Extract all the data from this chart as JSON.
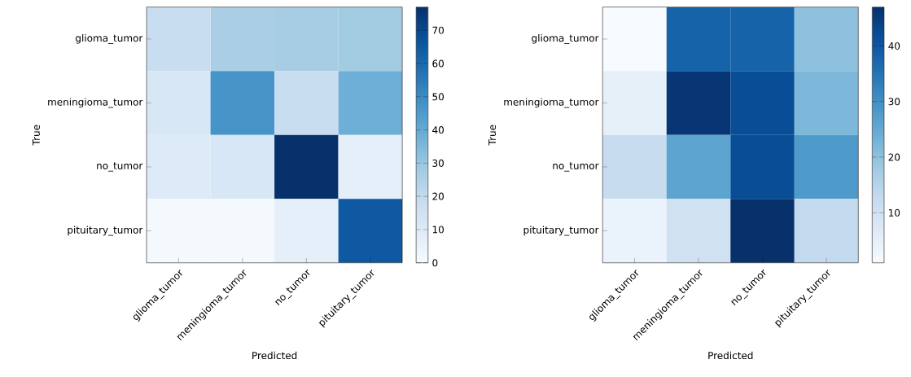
{
  "chart_data": [
    {
      "type": "heatmap",
      "xlabel": "Predicted",
      "ylabel": "True",
      "categories": [
        "glioma_tumor",
        "meningioma_tumor",
        "no_tumor",
        "pituitary_tumor"
      ],
      "y_categories": [
        "glioma_tumor",
        "meningioma_tumor",
        "no_tumor",
        "pituitary_tumor"
      ],
      "cells": [
        [
          18,
          26,
          27,
          28
        ],
        [
          12,
          47,
          18,
          38
        ],
        [
          10,
          12,
          77,
          7
        ],
        [
          1,
          1,
          7,
          65
        ]
      ],
      "clim": [
        0,
        77
      ],
      "cticks": [
        0,
        10,
        20,
        30,
        40,
        50,
        60,
        70
      ]
    },
    {
      "type": "heatmap",
      "xlabel": "Predicted",
      "ylabel": "True",
      "categories": [
        "glioma_tumor",
        "meningioma_tumor",
        "no_tumor",
        "pituitary_tumor"
      ],
      "y_categories": [
        "glioma_tumor",
        "meningioma_tumor",
        "no_tumor",
        "pituitary_tumor"
      ],
      "cells": [
        [
          1,
          38,
          38,
          20
        ],
        [
          5,
          46,
          42,
          22
        ],
        [
          12,
          26,
          42,
          28
        ],
        [
          4,
          10,
          47,
          13
        ]
      ],
      "clim": [
        1,
        47
      ],
      "cticks": [
        10,
        20,
        30,
        40
      ]
    }
  ]
}
